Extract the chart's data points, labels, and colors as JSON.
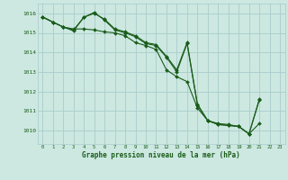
{
  "background_color": "#cce8e0",
  "grid_color": "#aacccc",
  "line_color": "#1a5c1a",
  "title": "Graphe pression niveau de la mer (hPa)",
  "xlim": [
    -0.5,
    23.5
  ],
  "ylim": [
    1009.3,
    1016.5
  ],
  "yticks": [
    1010,
    1011,
    1012,
    1013,
    1014,
    1015,
    1016
  ],
  "xticks": [
    0,
    1,
    2,
    3,
    4,
    5,
    6,
    7,
    8,
    9,
    10,
    11,
    12,
    13,
    14,
    15,
    16,
    17,
    18,
    19,
    20,
    21,
    22,
    23
  ],
  "line1": [
    1015.8,
    1015.55,
    1015.3,
    1015.2,
    1015.2,
    1015.15,
    1015.05,
    1015.0,
    1014.85,
    1014.5,
    1014.35,
    1014.15,
    1013.1,
    1012.75,
    1012.5,
    1011.15,
    1010.5,
    1010.35,
    1010.3,
    1010.2,
    1009.82,
    1010.35,
    null,
    null
  ],
  "line2": [
    1015.82,
    1015.55,
    1015.3,
    1015.15,
    1015.8,
    1016.0,
    1015.7,
    1015.2,
    1015.05,
    1014.85,
    1014.5,
    1014.4,
    1013.8,
    1013.1,
    1014.5,
    1011.35,
    1010.5,
    1010.3,
    1010.25,
    1010.2,
    1009.82,
    1011.55,
    null,
    null
  ],
  "line3": [
    1015.82,
    1015.55,
    1015.3,
    1015.1,
    1015.8,
    1016.05,
    1015.65,
    1015.15,
    1015.0,
    1014.8,
    1014.45,
    1014.35,
    1013.75,
    1013.0,
    1014.45,
    1011.3,
    1010.5,
    1010.3,
    1010.25,
    1010.2,
    1009.82,
    1011.6,
    null,
    null
  ],
  "figsize": [
    3.2,
    2.0
  ],
  "dpi": 100
}
